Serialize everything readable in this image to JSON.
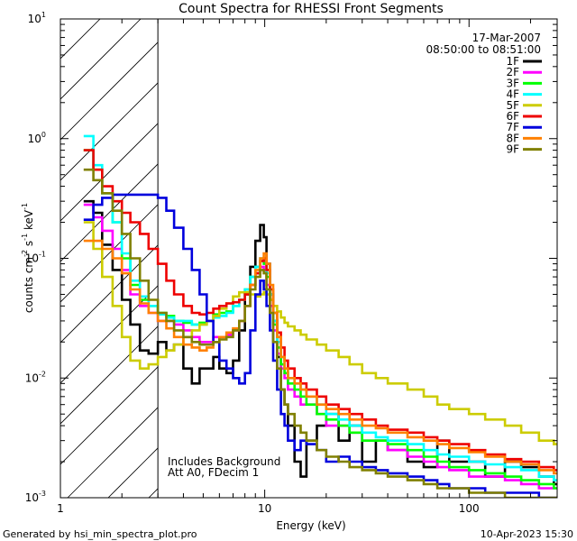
{
  "chart_data": {
    "type": "line",
    "title": "Count Spectra for RHESSI Front Segments",
    "xlabel": "Energy (keV)",
    "ylabel_parts": [
      "counts cm",
      "-2",
      " s",
      "-1",
      " keV",
      "-1"
    ],
    "x_scale": "log",
    "y_scale": "log",
    "xlim": [
      1,
      270
    ],
    "ylim": [
      0.001,
      10
    ],
    "x_tick_labels": [
      {
        "v": 1,
        "t": "1"
      },
      {
        "v": 10,
        "t": "10"
      },
      {
        "v": 100,
        "t": "100"
      }
    ],
    "y_tick_labels": [
      {
        "v": 0.001,
        "base": "10",
        "exp": "-3"
      },
      {
        "v": 0.01,
        "base": "10",
        "exp": "-2"
      },
      {
        "v": 0.1,
        "base": "10",
        "exp": "-1"
      },
      {
        "v": 1,
        "base": "10",
        "exp": "0"
      },
      {
        "v": 10,
        "base": "10",
        "exp": "1"
      }
    ],
    "date": "17-Mar-2007",
    "time_range": "08:50:00 to 08:51:00",
    "annotation_lines": [
      "Includes Background",
      "Att A0, FDecim 1"
    ],
    "excluded_below_keV": 3,
    "footer_left": "Generated by hsi_min_spectra_plot.pro",
    "footer_right": "10-Apr-2023 15:30",
    "series": [
      {
        "name": "1F",
        "color": "#000000",
        "x": [
          1.3,
          1.45,
          1.6,
          1.8,
          2.0,
          2.2,
          2.45,
          2.7,
          3.0,
          3.3,
          3.6,
          4.0,
          4.4,
          4.8,
          5.2,
          5.6,
          6.0,
          6.5,
          7.0,
          7.5,
          8.0,
          8.5,
          9.0,
          9.5,
          9.9,
          10.2,
          10.6,
          11.0,
          11.5,
          12.0,
          12.5,
          13.0,
          14.0,
          15.0,
          16.0,
          18.0,
          20.0,
          23.0,
          26.0,
          30.0,
          35.0,
          40.0,
          50.0,
          60.0,
          70.0,
          80.0,
          100.0,
          120.0,
          150.0,
          180.0,
          220.0,
          260.0
        ],
        "y": [
          0.3,
          0.24,
          0.13,
          0.08,
          0.045,
          0.028,
          0.017,
          0.016,
          0.02,
          0.017,
          0.019,
          0.012,
          0.009,
          0.012,
          0.012,
          0.015,
          0.012,
          0.011,
          0.014,
          0.025,
          0.05,
          0.085,
          0.14,
          0.19,
          0.15,
          0.09,
          0.05,
          0.03,
          0.015,
          0.008,
          0.006,
          0.004,
          0.002,
          0.0015,
          0.003,
          0.004,
          0.005,
          0.003,
          0.004,
          0.002,
          0.003,
          0.0025,
          0.002,
          0.0018,
          0.003,
          0.002,
          0.002,
          0.0015,
          0.002,
          0.0018,
          0.0015,
          0.0013
        ]
      },
      {
        "name": "2F",
        "color": "#ff00ff",
        "x": [
          1.3,
          1.45,
          1.6,
          1.8,
          2.0,
          2.2,
          2.45,
          2.7,
          3.0,
          3.3,
          3.6,
          4.0,
          4.4,
          4.8,
          5.2,
          5.6,
          6.0,
          6.5,
          7.0,
          7.5,
          8.0,
          8.5,
          9.0,
          9.5,
          9.9,
          10.2,
          10.6,
          11.0,
          11.5,
          12.0,
          12.5,
          13.0,
          14.0,
          15.0,
          16.0,
          18.0,
          20.0,
          23.0,
          26.0,
          30.0,
          35.0,
          40.0,
          50.0,
          60.0,
          70.0,
          80.0,
          100.0,
          120.0,
          150.0,
          180.0,
          220.0,
          260.0
        ],
        "y": [
          0.28,
          0.22,
          0.17,
          0.12,
          0.08,
          0.05,
          0.04,
          0.035,
          0.03,
          0.03,
          0.028,
          0.025,
          0.022,
          0.02,
          0.02,
          0.022,
          0.022,
          0.023,
          0.025,
          0.03,
          0.04,
          0.06,
          0.075,
          0.085,
          0.08,
          0.06,
          0.04,
          0.025,
          0.016,
          0.012,
          0.01,
          0.008,
          0.007,
          0.006,
          0.006,
          0.005,
          0.004,
          0.004,
          0.0035,
          0.003,
          0.003,
          0.0025,
          0.0022,
          0.002,
          0.0018,
          0.0017,
          0.0015,
          0.0015,
          0.0014,
          0.0013,
          0.0012,
          0.0012
        ]
      },
      {
        "name": "3F",
        "color": "#00ff00",
        "x": [
          1.3,
          1.45,
          1.6,
          1.8,
          2.0,
          2.2,
          2.45,
          2.7,
          3.0,
          3.3,
          3.6,
          4.0,
          4.4,
          4.8,
          5.2,
          5.6,
          6.0,
          6.5,
          7.0,
          7.5,
          8.0,
          8.5,
          9.0,
          9.5,
          9.9,
          10.2,
          10.6,
          11.0,
          11.5,
          12.0,
          12.5,
          13.0,
          14.0,
          15.0,
          16.0,
          18.0,
          20.0,
          23.0,
          26.0,
          30.0,
          35.0,
          40.0,
          50.0,
          60.0,
          70.0,
          80.0,
          100.0,
          120.0,
          150.0,
          180.0,
          220.0,
          260.0
        ],
        "y": [
          0.8,
          0.55,
          0.35,
          0.2,
          0.1,
          0.06,
          0.045,
          0.04,
          0.035,
          0.033,
          0.03,
          0.029,
          0.028,
          0.029,
          0.03,
          0.034,
          0.035,
          0.036,
          0.04,
          0.045,
          0.055,
          0.07,
          0.085,
          0.095,
          0.09,
          0.07,
          0.045,
          0.028,
          0.018,
          0.013,
          0.011,
          0.009,
          0.008,
          0.007,
          0.006,
          0.005,
          0.0045,
          0.004,
          0.0035,
          0.003,
          0.003,
          0.0028,
          0.0025,
          0.0022,
          0.002,
          0.0018,
          0.0017,
          0.0016,
          0.0015,
          0.0014,
          0.0013,
          0.0012
        ]
      },
      {
        "name": "4F",
        "color": "#00ffff",
        "x": [
          1.3,
          1.45,
          1.6,
          1.8,
          2.0,
          2.2,
          2.45,
          2.7,
          3.0,
          3.3,
          3.6,
          4.0,
          4.4,
          4.8,
          5.2,
          5.6,
          6.0,
          6.5,
          7.0,
          7.5,
          8.0,
          8.5,
          9.0,
          9.5,
          9.9,
          10.2,
          10.6,
          11.0,
          11.5,
          12.0,
          12.5,
          13.0,
          14.0,
          15.0,
          16.0,
          18.0,
          20.0,
          23.0,
          26.0,
          30.0,
          35.0,
          40.0,
          50.0,
          60.0,
          70.0,
          80.0,
          100.0,
          120.0,
          150.0,
          180.0,
          220.0,
          260.0
        ],
        "y": [
          1.05,
          0.6,
          0.35,
          0.2,
          0.11,
          0.065,
          0.048,
          0.04,
          0.034,
          0.032,
          0.03,
          0.03,
          0.028,
          0.028,
          0.03,
          0.032,
          0.033,
          0.035,
          0.04,
          0.045,
          0.055,
          0.07,
          0.085,
          0.1,
          0.095,
          0.075,
          0.05,
          0.03,
          0.02,
          0.015,
          0.012,
          0.01,
          0.009,
          0.008,
          0.007,
          0.006,
          0.005,
          0.0045,
          0.004,
          0.0035,
          0.0032,
          0.003,
          0.0028,
          0.0025,
          0.0023,
          0.0022,
          0.002,
          0.0019,
          0.0018,
          0.0017,
          0.0015,
          0.0014
        ]
      },
      {
        "name": "5F",
        "color": "#cccc00",
        "x": [
          1.3,
          1.45,
          1.6,
          1.8,
          2.0,
          2.2,
          2.45,
          2.7,
          3.0,
          3.3,
          3.6,
          4.0,
          4.4,
          4.8,
          5.2,
          5.6,
          6.0,
          6.5,
          7.0,
          7.5,
          8.0,
          8.5,
          9.0,
          9.5,
          9.9,
          10.2,
          10.6,
          11.0,
          11.5,
          12.0,
          12.5,
          13.0,
          14.0,
          15.0,
          16.0,
          18.0,
          20.0,
          23.0,
          26.0,
          30.0,
          35.0,
          40.0,
          50.0,
          60.0,
          70.0,
          80.0,
          100.0,
          120.0,
          150.0,
          180.0,
          220.0,
          260.0
        ],
        "y": [
          0.2,
          0.12,
          0.07,
          0.04,
          0.022,
          0.014,
          0.012,
          0.013,
          0.015,
          0.017,
          0.019,
          0.022,
          0.025,
          0.028,
          0.03,
          0.033,
          0.038,
          0.042,
          0.048,
          0.052,
          0.052,
          0.05,
          0.048,
          0.05,
          0.052,
          0.05,
          0.045,
          0.04,
          0.036,
          0.032,
          0.029,
          0.027,
          0.025,
          0.023,
          0.021,
          0.019,
          0.017,
          0.015,
          0.013,
          0.011,
          0.01,
          0.009,
          0.008,
          0.007,
          0.006,
          0.0055,
          0.005,
          0.0045,
          0.004,
          0.0035,
          0.003,
          0.0028
        ]
      },
      {
        "name": "6F",
        "color": "#ee0000",
        "x": [
          1.3,
          1.45,
          1.6,
          1.8,
          2.0,
          2.2,
          2.45,
          2.7,
          3.0,
          3.3,
          3.6,
          4.0,
          4.4,
          4.8,
          5.2,
          5.6,
          6.0,
          6.5,
          7.0,
          7.5,
          8.0,
          8.5,
          9.0,
          9.5,
          9.9,
          10.2,
          10.6,
          11.0,
          11.5,
          12.0,
          12.5,
          13.0,
          14.0,
          15.0,
          16.0,
          18.0,
          20.0,
          23.0,
          26.0,
          30.0,
          35.0,
          40.0,
          50.0,
          60.0,
          70.0,
          80.0,
          100.0,
          120.0,
          150.0,
          180.0,
          220.0,
          260.0
        ],
        "y": [
          0.8,
          0.55,
          0.4,
          0.3,
          0.24,
          0.2,
          0.16,
          0.12,
          0.09,
          0.065,
          0.05,
          0.04,
          0.035,
          0.034,
          0.035,
          0.038,
          0.04,
          0.042,
          0.043,
          0.045,
          0.05,
          0.06,
          0.075,
          0.095,
          0.1,
          0.08,
          0.055,
          0.035,
          0.024,
          0.018,
          0.014,
          0.012,
          0.01,
          0.009,
          0.008,
          0.007,
          0.006,
          0.0055,
          0.005,
          0.0045,
          0.004,
          0.0037,
          0.0035,
          0.0032,
          0.003,
          0.0028,
          0.0025,
          0.0023,
          0.0021,
          0.002,
          0.0018,
          0.0017
        ]
      },
      {
        "name": "7F",
        "color": "#0000dd",
        "x": [
          1.3,
          1.45,
          1.6,
          1.8,
          2.0,
          2.2,
          2.45,
          2.7,
          3.0,
          3.3,
          3.6,
          4.0,
          4.4,
          4.8,
          5.2,
          5.6,
          6.0,
          6.5,
          7.0,
          7.5,
          8.0,
          8.5,
          9.0,
          9.5,
          9.9,
          10.2,
          10.6,
          11.0,
          11.5,
          12.0,
          12.5,
          13.0,
          14.0,
          15.0,
          16.0,
          18.0,
          20.0,
          23.0,
          26.0,
          30.0,
          35.0,
          40.0,
          50.0,
          60.0,
          70.0,
          80.0,
          100.0,
          120.0,
          150.0,
          180.0,
          220.0,
          260.0
        ],
        "y": [
          0.21,
          0.28,
          0.32,
          0.34,
          0.34,
          0.34,
          0.34,
          0.34,
          0.32,
          0.25,
          0.18,
          0.12,
          0.08,
          0.05,
          0.03,
          0.02,
          0.014,
          0.012,
          0.01,
          0.009,
          0.011,
          0.025,
          0.05,
          0.065,
          0.055,
          0.04,
          0.025,
          0.014,
          0.008,
          0.005,
          0.004,
          0.003,
          0.0025,
          0.003,
          0.0028,
          0.0025,
          0.002,
          0.0022,
          0.002,
          0.0018,
          0.0017,
          0.0016,
          0.0015,
          0.0014,
          0.0013,
          0.0012,
          0.0012,
          0.0011,
          0.0011,
          0.0011,
          0.001,
          0.001
        ]
      },
      {
        "name": "8F",
        "color": "#ff8000",
        "x": [
          1.3,
          1.45,
          1.6,
          1.8,
          2.0,
          2.2,
          2.45,
          2.7,
          3.0,
          3.3,
          3.6,
          4.0,
          4.4,
          4.8,
          5.2,
          5.6,
          6.0,
          6.5,
          7.0,
          7.5,
          8.0,
          8.5,
          9.0,
          9.5,
          9.9,
          10.2,
          10.6,
          11.0,
          11.5,
          12.0,
          12.5,
          13.0,
          14.0,
          15.0,
          16.0,
          18.0,
          20.0,
          23.0,
          26.0,
          30.0,
          35.0,
          40.0,
          50.0,
          60.0,
          70.0,
          80.0,
          100.0,
          120.0,
          150.0,
          180.0,
          220.0,
          260.0
        ],
        "y": [
          0.14,
          0.14,
          0.12,
          0.1,
          0.075,
          0.055,
          0.042,
          0.035,
          0.03,
          0.026,
          0.022,
          0.019,
          0.018,
          0.017,
          0.018,
          0.02,
          0.022,
          0.024,
          0.026,
          0.03,
          0.04,
          0.06,
          0.08,
          0.1,
          0.11,
          0.09,
          0.06,
          0.035,
          0.022,
          0.015,
          0.012,
          0.01,
          0.009,
          0.008,
          0.007,
          0.006,
          0.0055,
          0.005,
          0.0045,
          0.004,
          0.0038,
          0.0035,
          0.0032,
          0.003,
          0.0028,
          0.0026,
          0.0024,
          0.0022,
          0.002,
          0.0019,
          0.0017,
          0.0016
        ]
      },
      {
        "name": "9F",
        "color": "#808000",
        "x": [
          1.3,
          1.45,
          1.6,
          1.8,
          2.0,
          2.2,
          2.45,
          2.7,
          3.0,
          3.3,
          3.6,
          4.0,
          4.4,
          4.8,
          5.2,
          5.6,
          6.0,
          6.5,
          7.0,
          7.5,
          8.0,
          8.5,
          9.0,
          9.5,
          9.9,
          10.2,
          10.6,
          11.0,
          11.5,
          12.0,
          12.5,
          13.0,
          14.0,
          15.0,
          16.0,
          18.0,
          20.0,
          23.0,
          26.0,
          30.0,
          35.0,
          40.0,
          50.0,
          60.0,
          70.0,
          80.0,
          100.0,
          120.0,
          150.0,
          180.0,
          220.0,
          260.0
        ],
        "y": [
          0.55,
          0.45,
          0.35,
          0.25,
          0.16,
          0.1,
          0.065,
          0.045,
          0.035,
          0.03,
          0.025,
          0.022,
          0.02,
          0.019,
          0.019,
          0.02,
          0.021,
          0.022,
          0.025,
          0.03,
          0.04,
          0.055,
          0.07,
          0.08,
          0.075,
          0.055,
          0.035,
          0.02,
          0.012,
          0.008,
          0.006,
          0.005,
          0.004,
          0.0035,
          0.003,
          0.0025,
          0.0022,
          0.002,
          0.0018,
          0.0017,
          0.0016,
          0.0015,
          0.0014,
          0.0013,
          0.0012,
          0.0012,
          0.0011,
          0.0011,
          0.001,
          0.001,
          0.001,
          0.001
        ]
      }
    ]
  }
}
